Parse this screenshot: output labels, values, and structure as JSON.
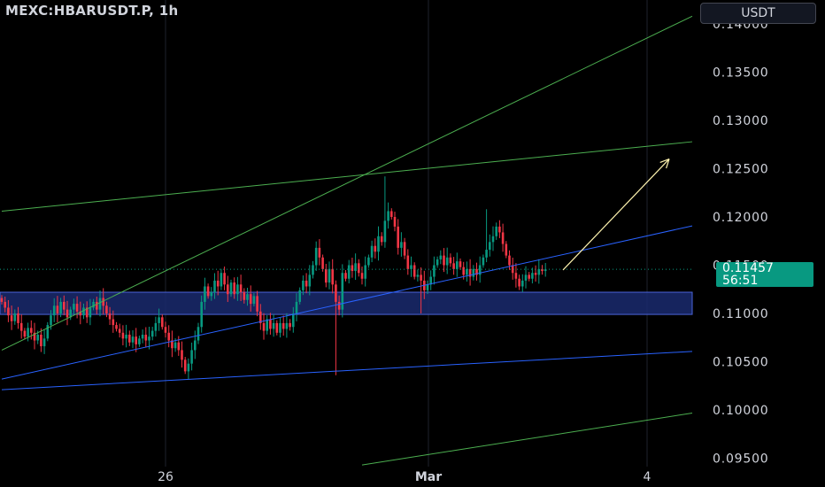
{
  "header": {
    "symbol": "MEXC:HBARUSDT.P, 1h",
    "currency_button": "USDT"
  },
  "last_price": {
    "value": "0.11457",
    "countdown": "56:51",
    "color": "#089981"
  },
  "colors": {
    "up": "#089981",
    "down": "#f23645",
    "background": "#000000",
    "zone": "#1a2a6e",
    "blue_line": "#2962ff",
    "green_line": "#4caf50",
    "arrow": "#fff4b0",
    "axis_text": "#d1d4dc"
  },
  "chart_data": {
    "type": "candlestick",
    "title": "MEXC:HBARUSDT.P, 1h",
    "x_ticks": [
      "26",
      "Mar",
      "4"
    ],
    "y_ticks": [
      0.095,
      0.1,
      0.105,
      0.11,
      0.115,
      0.12,
      0.125,
      0.13,
      0.135,
      0.14
    ],
    "y_tick_labels": [
      "0.09500",
      "0.10000",
      "0.10500",
      "0.11000",
      "0.11500",
      "0.12000",
      "0.12500",
      "0.13000",
      "0.13500",
      "0.14000"
    ],
    "ylim": [
      0.0935,
      0.1415
    ],
    "last_price": 0.11457,
    "series_close": [
      0.1112,
      0.1106,
      0.1098,
      0.1092,
      0.11,
      0.109,
      0.1082,
      0.1076,
      0.1085,
      0.108,
      0.1072,
      0.1078,
      0.1066,
      0.1074,
      0.1088,
      0.1098,
      0.1108,
      0.11,
      0.1112,
      0.1104,
      0.1096,
      0.1104,
      0.111,
      0.1102,
      0.1098,
      0.1106,
      0.1096,
      0.1106,
      0.1112,
      0.1104,
      0.1116,
      0.1108,
      0.11,
      0.1094,
      0.1088,
      0.1084,
      0.108,
      0.1074,
      0.1078,
      0.107,
      0.1076,
      0.1068,
      0.1074,
      0.1078,
      0.1072,
      0.1076,
      0.1082,
      0.109,
      0.1096,
      0.1086,
      0.108,
      0.1072,
      0.1064,
      0.107,
      0.1062,
      0.1052,
      0.104,
      0.1048,
      0.1062,
      0.1072,
      0.1086,
      0.1112,
      0.1128,
      0.1118,
      0.1122,
      0.1134,
      0.1128,
      0.1142,
      0.113,
      0.112,
      0.1132,
      0.112,
      0.113,
      0.1122,
      0.1114,
      0.112,
      0.111,
      0.1118,
      0.1102,
      0.109,
      0.1082,
      0.1094,
      0.1084,
      0.109,
      0.108,
      0.109,
      0.1084,
      0.109,
      0.1086,
      0.11,
      0.1112,
      0.1124,
      0.1134,
      0.1128,
      0.114,
      0.115,
      0.1168,
      0.1158,
      0.1146,
      0.1132,
      0.1146,
      0.113,
      0.1112,
      0.1104,
      0.1142,
      0.1136,
      0.115,
      0.1144,
      0.1152,
      0.1142,
      0.1136,
      0.115,
      0.1158,
      0.117,
      0.1164,
      0.118,
      0.1174,
      0.1196,
      0.1206,
      0.12,
      0.119,
      0.1168,
      0.1174,
      0.116,
      0.1146,
      0.115,
      0.1138,
      0.114,
      0.1134,
      0.1124,
      0.113,
      0.1138,
      0.115,
      0.1156,
      0.116,
      0.115,
      0.1158,
      0.1152,
      0.1146,
      0.1154,
      0.1148,
      0.114,
      0.1146,
      0.1138,
      0.1146,
      0.114,
      0.115,
      0.1158,
      0.1166,
      0.1174,
      0.118,
      0.119,
      0.1184,
      0.1172,
      0.116,
      0.115,
      0.1142,
      0.1136,
      0.1128,
      0.1134,
      0.114,
      0.1136,
      0.1142,
      0.114,
      0.1146,
      0.1144,
      0.11457
    ],
    "horizontal_zone": {
      "top": 0.1122,
      "bottom": 0.1099,
      "color": "#1a2a6e"
    },
    "trendlines": [
      {
        "color": "#2962ff",
        "from": [
          0,
          0.1032
        ],
        "to": [
          170,
          0.116
        ]
      },
      {
        "color": "#2962ff",
        "from": [
          0,
          0.1021
        ],
        "to": [
          170,
          0.1053
        ]
      },
      {
        "color": "#4caf50",
        "from": [
          0,
          0.1062
        ],
        "to": [
          170,
          0.1341
        ]
      },
      {
        "color": "#4caf50",
        "from": [
          0,
          0.1206
        ],
        "to": [
          170,
          0.1264
        ]
      },
      {
        "color": "#4caf50",
        "from": [
          110,
          0.0943
        ],
        "to": [
          170,
          0.0975
        ]
      }
    ],
    "projection_arrow": {
      "color": "#fff4b0",
      "from": [
        138,
        0.1145
      ],
      "to": [
        163,
        0.126
      ]
    }
  }
}
